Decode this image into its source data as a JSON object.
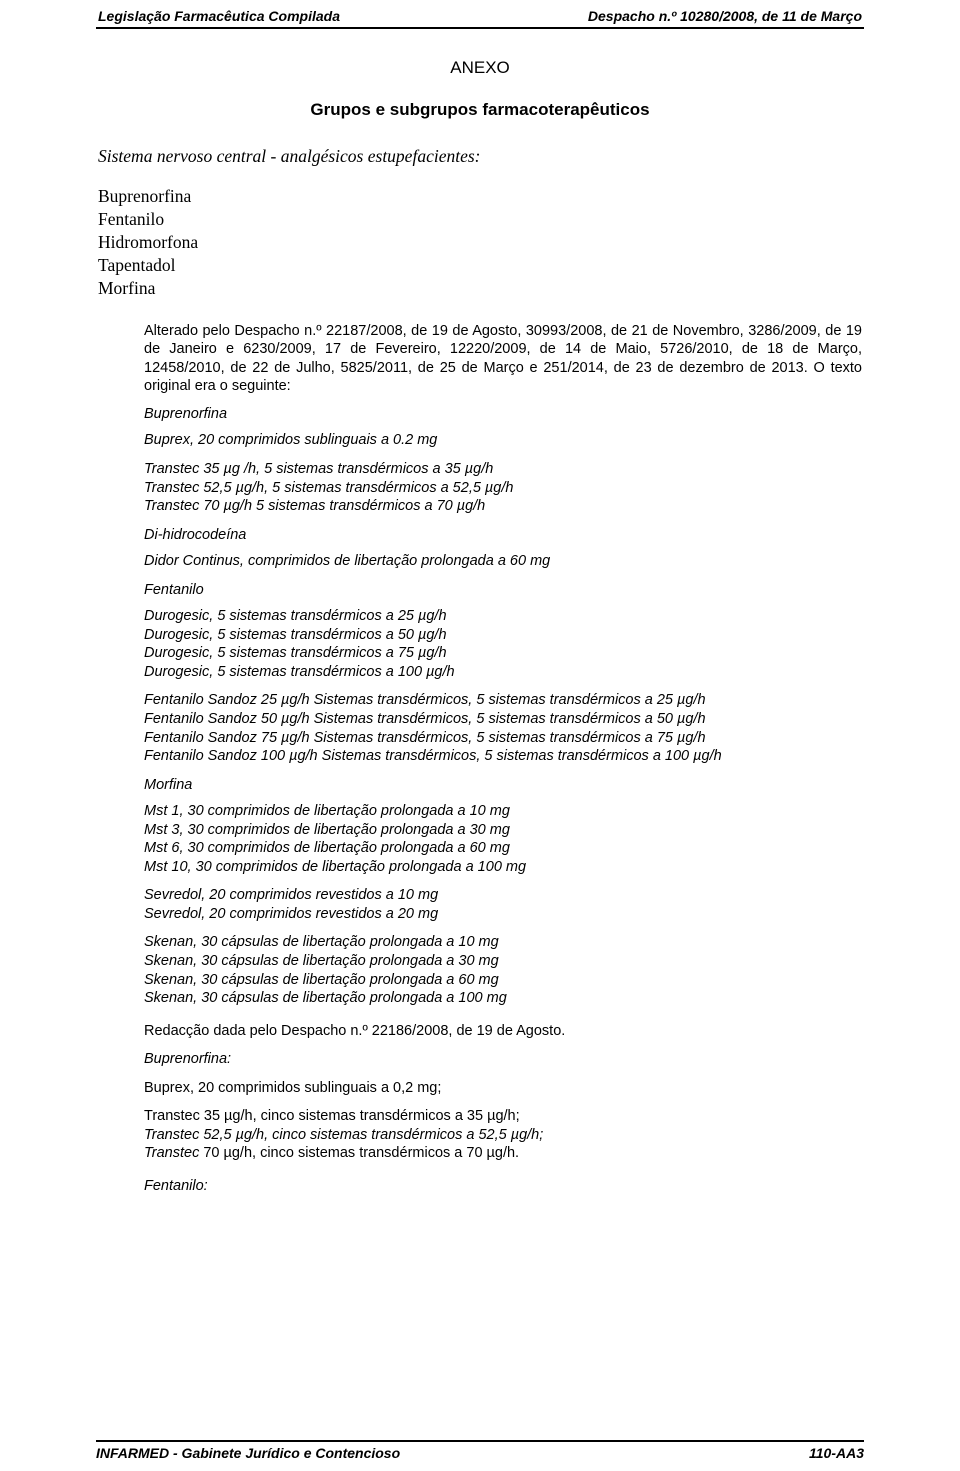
{
  "header": {
    "left": "Legislação Farmacêutica Compilada",
    "right": "Despacho n.º 10280/2008, de 11 de Março"
  },
  "title": "ANEXO",
  "subtitle": "Grupos e subgrupos farmacoterapêuticos",
  "systemLine": "Sistema nervoso central - analgésicos estupefacientes:",
  "drugs": [
    "Buprenorfina",
    "Fentanilo",
    "Hidromorfona",
    "Tapentadol",
    "Morfina"
  ],
  "alterado": "Alterado pelo Despacho n.º 22187/2008, de 19 de Agosto, 30993/2008, de 21 de Novembro, 3286/2009, de 19 de Janeiro e 6230/2009, 17 de Fevereiro, 12220/2009, de 14 de Maio, 5726/2010, de 18 de Março, 12458/2010, de 22 de Julho, 5825/2011, de 25 de Março e 251/2014, de 23 de dezembro de 2013. O texto original era o seguinte:",
  "sec1": {
    "h1": "Buprenorfina",
    "l1": "Buprex, 20 comprimidos sublinguais a 0.2 mg",
    "t1": "Transtec 35 µg /h, 5 sistemas transdérmicos a 35 µg/h",
    "t2": "Transtec 52,5 µg/h, 5 sistemas transdérmicos a 52,5 µg/h",
    "t3": "Transtec 70 µg/h 5 sistemas transdérmicos a 70 µg/h",
    "dih": "Di-hidrocodeína",
    "didor": "Didor Continus, comprimidos de libertação prolongada a 60 mg",
    "fent": "Fentanilo",
    "d1": "Durogesic, 5 sistemas transdérmicos a 25 µg/h",
    "d2": "Durogesic, 5 sistemas transdérmicos a 50 µg/h",
    "d3": "Durogesic, 5 sistemas transdérmicos a 75 µg/h",
    "d4": "Durogesic, 5 sistemas transdérmicos a 100 µg/h",
    "fs1": "Fentanilo Sandoz 25 µg/h Sistemas transdérmicos, 5 sistemas transdérmicos a 25 µg/h",
    "fs2": "Fentanilo Sandoz 50 µg/h Sistemas transdérmicos, 5 sistemas transdérmicos a 50 µg/h",
    "fs3": "Fentanilo Sandoz 75 µg/h Sistemas transdérmicos, 5 sistemas transdérmicos a 75 µg/h",
    "fs4": "Fentanilo Sandoz 100 µg/h Sistemas transdérmicos, 5 sistemas transdérmicos a 100 µg/h",
    "morf": "Morfina",
    "m1": "Mst 1, 30 comprimidos de libertação prolongada a 10 mg",
    "m2": "Mst 3, 30 comprimidos de libertação prolongada a 30 mg",
    "m3": "Mst 6, 30 comprimidos de libertação prolongada a 60 mg",
    "m4": "Mst 10, 30 comprimidos de libertação prolongada a 100 mg",
    "sv1": "Sevredol, 20 comprimidos revestidos a 10 mg",
    "sv2": "Sevredol, 20 comprimidos revestidos a 20 mg",
    "sk1": "Skenan, 30 cápsulas de libertação prolongada a 10 mg",
    "sk2": "Skenan, 30 cápsulas de libertação prolongada a 30 mg",
    "sk3": "Skenan, 30 cápsulas de libertação prolongada a 60 mg",
    "sk4": "Skenan, 30 cápsulas de libertação prolongada a 100 mg"
  },
  "redac": "Redacção dada pelo Despacho n.º 22186/2008, de 19 de Agosto.",
  "sec2": {
    "bu": "Buprenorfina:",
    "bp": "Buprex, 20 comprimidos sublinguais a 0,2 mg;",
    "t1a": "Transtec 35 µg/h",
    "t1b": ", cinco sistemas transdérmicos a 35 µg/h;",
    "t2": "Transtec 52,5 µg/h, cinco sistemas transdérmicos a 52,5 µg/h;",
    "t3a": "Transtec ",
    "t3b": "70 µg/h, cinco sistemas transdérmicos a 70 µg/h.",
    "fe": "Fentanilo:"
  },
  "footer": {
    "left": "INFARMED - Gabinete Jurídico e Contencioso",
    "right": "110-AA3"
  }
}
